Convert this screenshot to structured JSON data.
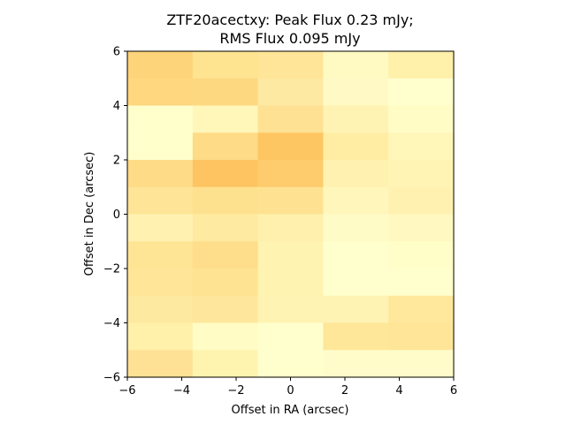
{
  "chart_data": {
    "type": "heatmap",
    "title_line1": "ZTF20acectxy: Peak Flux 0.23 mJy;",
    "title_line2": "RMS Flux 0.095 mJy",
    "xlabel": "Offset in RA (arcsec)",
    "ylabel": "Offset in Dec (arcsec)",
    "xlim": [
      -6,
      6
    ],
    "ylim": [
      -6,
      6
    ],
    "xticks": [
      -6,
      -4,
      -2,
      0,
      2,
      4,
      6
    ],
    "yticks": [
      -6,
      -4,
      -2,
      0,
      2,
      4,
      6
    ],
    "colormap": "YlOrRd",
    "grid": false,
    "cell_colors_top_to_bottom": [
      [
        "#fed47a",
        "#fee391",
        "#fee597",
        "#fff9c2",
        "#fff0aa"
      ],
      [
        "#fed77f",
        "#fed881",
        "#fee9a2",
        "#fffac5",
        "#ffffcd"
      ],
      [
        "#ffffcc",
        "#fff6b9",
        "#fee193",
        "#fff3b4",
        "#fffcc6"
      ],
      [
        "#ffffcb",
        "#fedb86",
        "#fec663",
        "#ffeda4",
        "#fff6ba"
      ],
      [
        "#fedb87",
        "#fec462",
        "#fecb6d",
        "#fff2b0",
        "#fff4b4"
      ],
      [
        "#fee496",
        "#fee18f",
        "#fee292",
        "#fff6bb",
        "#fff2b1"
      ],
      [
        "#fff2b1",
        "#feeaa0",
        "#fff1ad",
        "#fffbc7",
        "#fff8c0"
      ],
      [
        "#fee596",
        "#fedd8b",
        "#fff3b1",
        "#ffffcd",
        "#fffec9"
      ],
      [
        "#fee597",
        "#fee393",
        "#fff3b1",
        "#ffffcd",
        "#ffffcd"
      ],
      [
        "#fee9a0",
        "#fee79c",
        "#fff3b3",
        "#fff3b4",
        "#ffe89c"
      ],
      [
        "#fff0aa",
        "#fffcc6",
        "#ffffcd",
        "#fee799",
        "#fee597"
      ],
      [
        "#fee195",
        "#fff3b0",
        "#ffffcd",
        "#fffcca",
        "#fffcca"
      ]
    ]
  }
}
